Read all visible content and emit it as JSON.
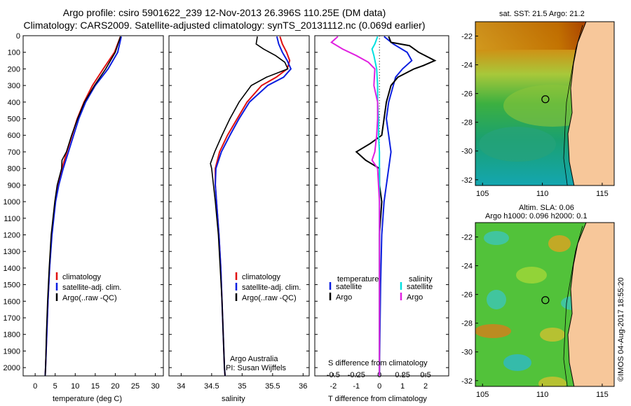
{
  "header": {
    "title_line1": "Argo profile: csiro 5901622_239 12-Nov-2013 26.396S 110.25E (DM data)",
    "title_line2": "Climatology: CARS2009. Satellite-adjusted climatology: synTS_20131112.nc (0.069d earlier)"
  },
  "colors": {
    "climatology": "#e01010",
    "satellite": "#0a1ee0",
    "argo": "#000000",
    "s_satellite": "#00e0e0",
    "s_argo": "#e020e0",
    "land": "#f7c79a"
  },
  "maps": {
    "sst_title": "sat. SST: 21.5 Argo: 21.2",
    "sla_title_line1": "Altim. SLA: 0.06",
    "sla_title_line2": "Argo h1000: 0.096 h2000: 0.1",
    "lon_ticks": [
      "105",
      "110",
      "115"
    ],
    "lat_ticks": [
      "-22",
      "-24",
      "-26",
      "-28",
      "-30",
      "-32"
    ]
  },
  "signature": {
    "line1": "Argo Australia",
    "line2": "PI: Susan Wijffels"
  },
  "credit": "©IMOS 04-Aug-2017 18:55:20",
  "chart_data": [
    {
      "type": "line",
      "name": "temperature profile",
      "xlabel": "temperature (deg C)",
      "ylabel": "",
      "xlim": [
        -3,
        32
      ],
      "ylim": [
        2050,
        0
      ],
      "xticks": [
        0,
        5,
        10,
        15,
        20,
        25,
        30
      ],
      "yticks": [
        0,
        100,
        200,
        300,
        400,
        500,
        600,
        700,
        800,
        900,
        1000,
        1100,
        1200,
        1300,
        1400,
        1500,
        1600,
        1700,
        1800,
        1900,
        2000
      ],
      "legend": [
        "climatology",
        "satellite-adj. clim.",
        "Argo(..raw -QC)"
      ],
      "series": [
        {
          "name": "climatology",
          "depth": [
            5,
            100,
            200,
            300,
            400,
            500,
            600,
            700,
            800,
            900,
            1000,
            1200,
            1400,
            1600,
            1800,
            2000,
            2050
          ],
          "values": [
            21.3,
            19.8,
            17.0,
            14.3,
            12.2,
            10.5,
            9.2,
            7.9,
            6.7,
            5.7,
            5.0,
            4.1,
            3.6,
            3.2,
            2.9,
            2.6,
            2.5
          ]
        },
        {
          "name": "satellite-adj. clim.",
          "depth": [
            5,
            100,
            200,
            300,
            400,
            500,
            600,
            700,
            800,
            900,
            1000,
            1200,
            1400,
            1600,
            1800,
            2000,
            2050
          ],
          "values": [
            21.5,
            20.6,
            18.2,
            15.0,
            12.6,
            10.9,
            9.6,
            8.3,
            7.0,
            5.9,
            5.1,
            4.2,
            3.6,
            3.2,
            2.9,
            2.6,
            2.5
          ]
        },
        {
          "name": "Argo(..raw -QC)",
          "depth": [
            5,
            100,
            200,
            300,
            400,
            500,
            600,
            700,
            750,
            800,
            900,
            1000,
            1200,
            1400,
            1600,
            1800,
            2000,
            2050
          ],
          "values": [
            21.3,
            20.0,
            17.6,
            14.8,
            12.3,
            10.6,
            9.1,
            7.8,
            6.7,
            6.6,
            5.5,
            4.9,
            4.0,
            3.5,
            3.1,
            2.8,
            2.6,
            2.5
          ]
        }
      ]
    },
    {
      "type": "line",
      "name": "salinity profile",
      "xlabel": "salinity",
      "ylabel": "",
      "xlim": [
        33.8,
        36.1
      ],
      "ylim": [
        2050,
        0
      ],
      "xticks": [
        34,
        34.5,
        35,
        35.5,
        36
      ],
      "legend": [
        "climatology",
        "satellite-adj. clim.",
        "Argo(..raw -QC)"
      ],
      "series": [
        {
          "name": "climatology",
          "depth": [
            5,
            50,
            100,
            150,
            200,
            250,
            300,
            400,
            500,
            600,
            700,
            800,
            900,
            1000,
            1200,
            1400,
            1600,
            1800,
            2000,
            2050
          ],
          "values": [
            35.62,
            35.66,
            35.73,
            35.78,
            35.74,
            35.56,
            35.32,
            35.08,
            34.92,
            34.76,
            34.63,
            34.56,
            34.56,
            34.58,
            34.62,
            34.65,
            34.67,
            34.69,
            34.71,
            34.72
          ]
        },
        {
          "name": "satellite-adj. clim.",
          "depth": [
            5,
            50,
            100,
            150,
            200,
            250,
            300,
            400,
            500,
            600,
            700,
            800,
            900,
            1000,
            1200,
            1400,
            1600,
            1800,
            2000,
            2050
          ],
          "values": [
            35.57,
            35.6,
            35.66,
            35.74,
            35.8,
            35.68,
            35.42,
            35.12,
            34.95,
            34.8,
            34.66,
            34.57,
            34.56,
            34.58,
            34.62,
            34.65,
            34.67,
            34.69,
            34.71,
            34.72
          ]
        },
        {
          "name": "Argo(..raw -QC)",
          "depth": [
            5,
            50,
            80,
            120,
            160,
            200,
            250,
            300,
            400,
            500,
            600,
            700,
            770,
            800,
            900,
            1000,
            1200,
            1400,
            1600,
            1800,
            2000,
            2050
          ],
          "values": [
            35.25,
            35.23,
            35.35,
            35.55,
            35.7,
            35.75,
            35.4,
            35.15,
            34.95,
            34.8,
            34.67,
            34.55,
            34.48,
            34.5,
            34.53,
            34.56,
            34.61,
            34.64,
            34.67,
            34.69,
            34.71,
            34.72
          ]
        }
      ]
    },
    {
      "type": "line",
      "name": "difference from climatology",
      "xlabel": "T difference from climatology",
      "xlabel_top": "S difference from climatology",
      "xlim": [
        -2.8,
        3.0
      ],
      "ylim": [
        2050,
        0
      ],
      "xticks": [
        "-2",
        "-1",
        "0",
        "1",
        "2"
      ],
      "xticks_values": [
        -2,
        -1,
        0,
        1,
        2
      ],
      "sticks": [
        "-0.5",
        "-0.25",
        "0",
        "0.25",
        "0.5"
      ],
      "sticks_values": [
        -0.5,
        -0.25,
        0,
        0.25,
        0.5
      ],
      "legend_left_title": "temperature",
      "legend_right_title": "salinity",
      "legend": [
        "satellite",
        "Argo"
      ],
      "series": [
        {
          "name": "T satellite",
          "depth": [
            5,
            50,
            100,
            150,
            200,
            250,
            300,
            400,
            500,
            600,
            700,
            800,
            900,
            1000,
            1200,
            1500,
            1800,
            2050
          ],
          "values": [
            0.2,
            0.6,
            1.2,
            1.4,
            1.0,
            0.7,
            0.6,
            0.4,
            0.3,
            0.4,
            0.5,
            0.4,
            0.3,
            0.2,
            0.1,
            0.05,
            0.02,
            0.0
          ]
        },
        {
          "name": "T Argo",
          "depth": [
            5,
            40,
            60,
            100,
            150,
            180,
            200,
            250,
            300,
            400,
            500,
            600,
            650,
            700,
            750,
            800,
            900,
            1000,
            1200,
            1500,
            1800,
            2050
          ],
          "values": [
            0.4,
            0.5,
            1.3,
            1.7,
            2.4,
            1.9,
            1.5,
            0.8,
            0.5,
            0.3,
            0.2,
            0.1,
            -0.4,
            -1.0,
            -0.6,
            0.0,
            0.0,
            0.1,
            0.0,
            0.0,
            0.0,
            0.0
          ]
        },
        {
          "name": "S satellite",
          "depth": [
            5,
            50,
            80,
            120,
            200,
            300,
            400,
            500,
            600,
            700,
            800,
            1000,
            1200,
            1500,
            1800,
            2050
          ],
          "values": [
            -0.02,
            -0.05,
            -0.08,
            -0.06,
            -0.03,
            -0.02,
            -0.02,
            -0.01,
            -0.01,
            0.0,
            0.0,
            0.0,
            0.0,
            0.0,
            0.0,
            0.0
          ]
        },
        {
          "name": "S Argo",
          "depth": [
            5,
            40,
            80,
            120,
            160,
            200,
            300,
            400,
            500,
            600,
            700,
            750,
            800,
            1000,
            1200,
            1500,
            1800,
            2050
          ],
          "values": [
            -0.45,
            -0.52,
            -0.4,
            -0.25,
            -0.12,
            -0.05,
            -0.06,
            -0.02,
            -0.02,
            -0.03,
            -0.05,
            -0.08,
            -0.02,
            0.0,
            0.0,
            0.0,
            0.0,
            0.0
          ]
        }
      ]
    }
  ]
}
